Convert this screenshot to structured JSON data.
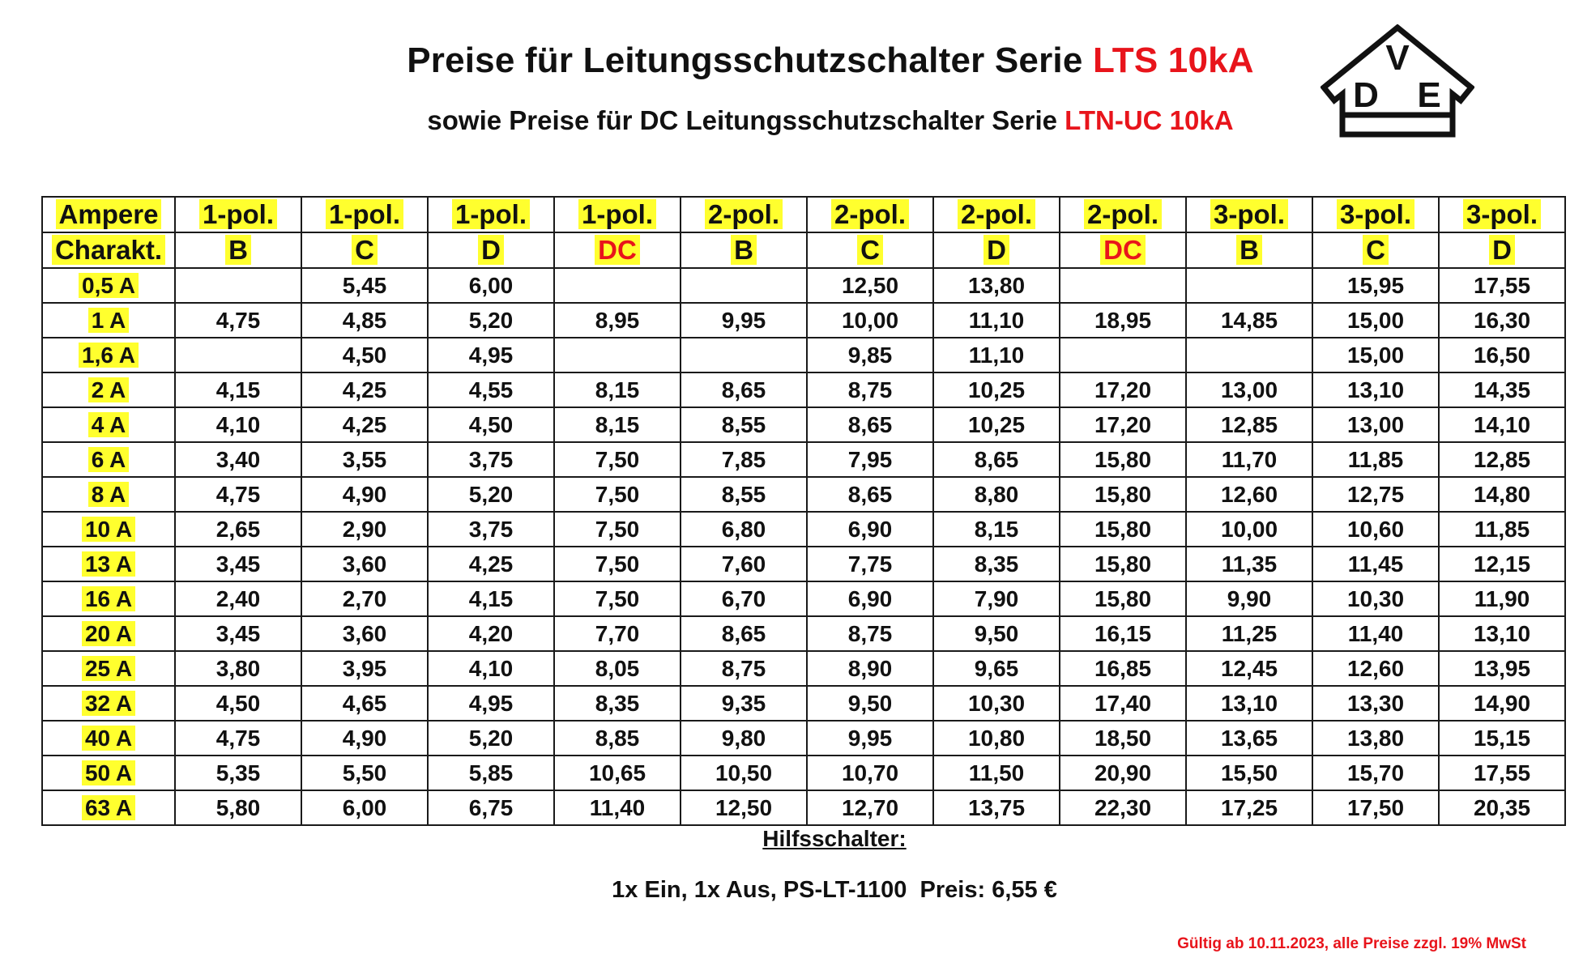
{
  "header": {
    "title_prefix": "Preise für Leitungsschutzschalter Serie ",
    "title_series": "LTS 10kA",
    "subtitle_prefix": "sowie Preise für DC Leitungsschutzschalter Serie ",
    "subtitle_series": "LTN-UC 10kA",
    "title_color": "#111111",
    "accent_color": "#e8141b"
  },
  "logo": {
    "icon": "vde-mark-icon",
    "letter_top": "V",
    "letter_left": "D",
    "letter_right": "E"
  },
  "table": {
    "highlight_color": "#ffff2e",
    "header_row1": [
      "Ampere",
      "1-pol.",
      "1-pol.",
      "1-pol.",
      "1-pol.",
      "2-pol.",
      "2-pol.",
      "2-pol.",
      "2-pol.",
      "3-pol.",
      "3-pol.",
      "3-pol."
    ],
    "header_row2": [
      "Charakt.",
      "B",
      "C",
      "D",
      "DC",
      "B",
      "C",
      "D",
      "DC",
      "B",
      "C",
      "D"
    ],
    "rows": [
      {
        "ampere": "0,5 A",
        "values": [
          "",
          "5,45",
          "6,00",
          "",
          "",
          "12,50",
          "13,80",
          "",
          "",
          "15,95",
          "17,55"
        ]
      },
      {
        "ampere": "1 A",
        "values": [
          "4,75",
          "4,85",
          "5,20",
          "8,95",
          "9,95",
          "10,00",
          "11,10",
          "18,95",
          "14,85",
          "15,00",
          "16,30"
        ]
      },
      {
        "ampere": "1,6 A",
        "values": [
          "",
          "4,50",
          "4,95",
          "",
          "",
          "9,85",
          "11,10",
          "",
          "",
          "15,00",
          "16,50"
        ]
      },
      {
        "ampere": "2 A",
        "values": [
          "4,15",
          "4,25",
          "4,55",
          "8,15",
          "8,65",
          "8,75",
          "10,25",
          "17,20",
          "13,00",
          "13,10",
          "14,35"
        ]
      },
      {
        "ampere": "4 A",
        "values": [
          "4,10",
          "4,25",
          "4,50",
          "8,15",
          "8,55",
          "8,65",
          "10,25",
          "17,20",
          "12,85",
          "13,00",
          "14,10"
        ]
      },
      {
        "ampere": "6 A",
        "values": [
          "3,40",
          "3,55",
          "3,75",
          "7,50",
          "7,85",
          "7,95",
          "8,65",
          "15,80",
          "11,70",
          "11,85",
          "12,85"
        ]
      },
      {
        "ampere": "8 A",
        "values": [
          "4,75",
          "4,90",
          "5,20",
          "7,50",
          "8,55",
          "8,65",
          "8,80",
          "15,80",
          "12,60",
          "12,75",
          "14,80"
        ]
      },
      {
        "ampere": "10 A",
        "values": [
          "2,65",
          "2,90",
          "3,75",
          "7,50",
          "6,80",
          "6,90",
          "8,15",
          "15,80",
          "10,00",
          "10,60",
          "11,85"
        ]
      },
      {
        "ampere": "13 A",
        "values": [
          "3,45",
          "3,60",
          "4,25",
          "7,50",
          "7,60",
          "7,75",
          "8,35",
          "15,80",
          "11,35",
          "11,45",
          "12,15"
        ]
      },
      {
        "ampere": "16 A",
        "values": [
          "2,40",
          "2,70",
          "4,15",
          "7,50",
          "6,70",
          "6,90",
          "7,90",
          "15,80",
          "9,90",
          "10,30",
          "11,90"
        ]
      },
      {
        "ampere": "20 A",
        "values": [
          "3,45",
          "3,60",
          "4,20",
          "7,70",
          "8,65",
          "8,75",
          "9,50",
          "16,15",
          "11,25",
          "11,40",
          "13,10"
        ]
      },
      {
        "ampere": "25 A",
        "values": [
          "3,80",
          "3,95",
          "4,10",
          "8,05",
          "8,75",
          "8,90",
          "9,65",
          "16,85",
          "12,45",
          "12,60",
          "13,95"
        ]
      },
      {
        "ampere": "32 A",
        "values": [
          "4,50",
          "4,65",
          "4,95",
          "8,35",
          "9,35",
          "9,50",
          "10,30",
          "17,40",
          "13,10",
          "13,30",
          "14,90"
        ]
      },
      {
        "ampere": "40 A",
        "values": [
          "4,75",
          "4,90",
          "5,20",
          "8,85",
          "9,80",
          "9,95",
          "10,80",
          "18,50",
          "13,65",
          "13,80",
          "15,15"
        ]
      },
      {
        "ampere": "50 A",
        "values": [
          "5,35",
          "5,50",
          "5,85",
          "10,65",
          "10,50",
          "10,70",
          "11,50",
          "20,90",
          "15,50",
          "15,70",
          "17,55"
        ]
      },
      {
        "ampere": "63 A",
        "values": [
          "5,80",
          "6,00",
          "6,75",
          "11,40",
          "12,50",
          "12,70",
          "13,75",
          "22,30",
          "17,25",
          "17,50",
          "20,35"
        ]
      }
    ]
  },
  "auxiliary": {
    "title": "Hilfsschalter:",
    "item": "1x Ein, 1x Aus, PS-LT-1100  Preis: 6,55 €"
  },
  "footer": {
    "validity": "Gültig ab 10.11.2023, alle Preise zzgl. 19% MwSt"
  }
}
